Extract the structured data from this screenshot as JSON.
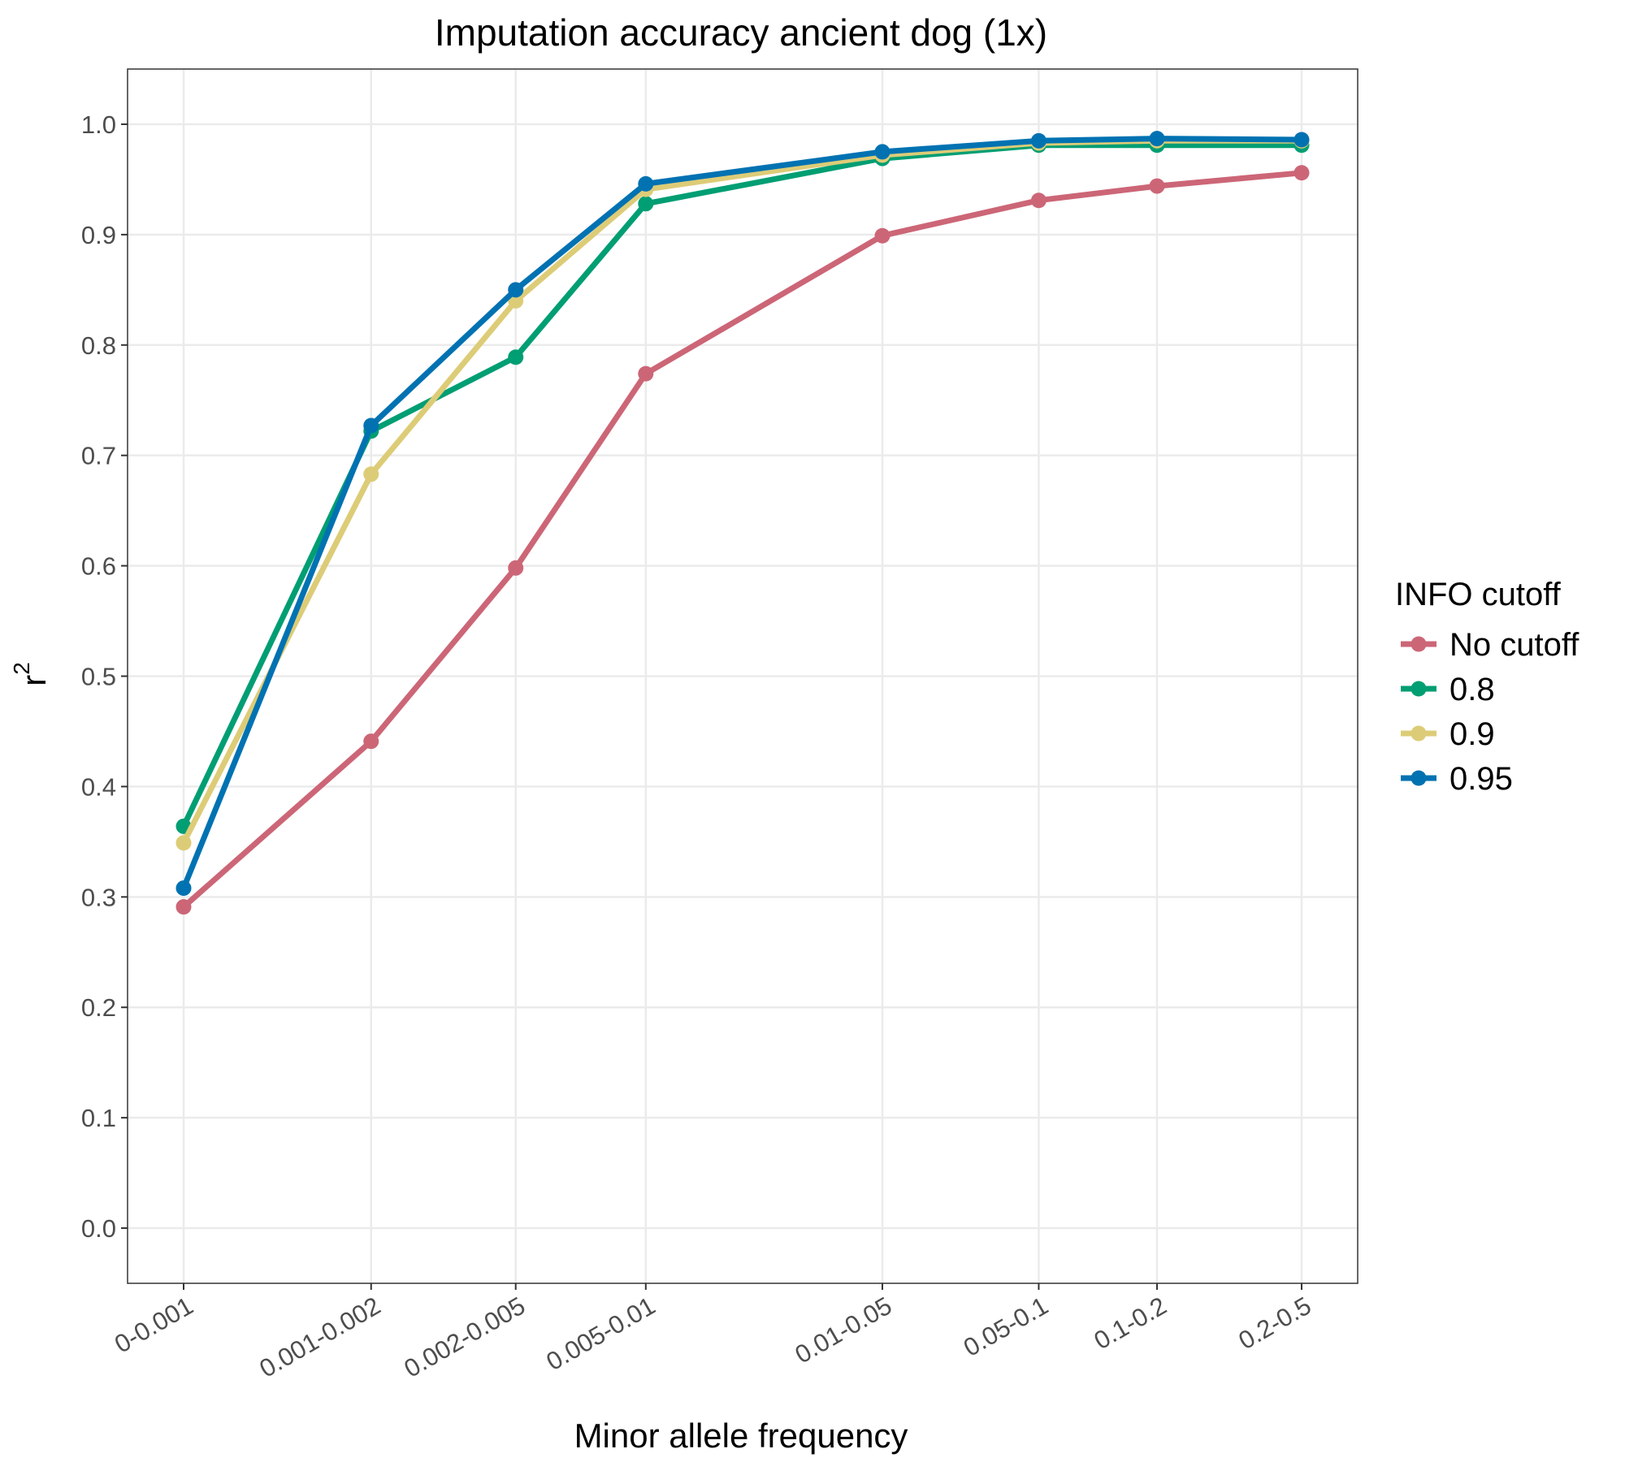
{
  "chart_data": {
    "type": "line",
    "title": "Imputation accuracy ancient dog (1x)",
    "xlabel": "Minor allele frequency",
    "ylabel": "r",
    "ylabel_superscript": "2",
    "categories": [
      "0-0.001",
      "0.001-0.002",
      "0.002-0.005",
      "0.005-0.01",
      "0.01-0.05",
      "0.05-0.1",
      "0.1-0.2",
      "0.2-0.5"
    ],
    "x_positions": [
      0.0005,
      0.0015,
      0.0035,
      0.0075,
      0.03,
      0.075,
      0.15,
      0.35
    ],
    "x_scale": "log",
    "ylim": [
      -0.05,
      1.05
    ],
    "yticks": [
      "0.0",
      "0.1",
      "0.2",
      "0.3",
      "0.4",
      "0.5",
      "0.6",
      "0.7",
      "0.8",
      "0.9",
      "1.0"
    ],
    "grid": true,
    "legend": {
      "title": "INFO cutoff",
      "placement": "right"
    },
    "series": [
      {
        "name": "No cutoff",
        "color": "#CC6677",
        "values": [
          0.291,
          0.441,
          0.598,
          0.774,
          0.899,
          0.931,
          0.944,
          0.956
        ]
      },
      {
        "name": "0.8",
        "color": "#009E73",
        "values": [
          0.364,
          0.722,
          0.789,
          0.928,
          0.969,
          0.981,
          0.981,
          0.981
        ]
      },
      {
        "name": "0.9",
        "color": "#DDCC77",
        "values": [
          0.349,
          0.683,
          0.84,
          0.941,
          0.972,
          0.983,
          0.985,
          0.985
        ]
      },
      {
        "name": "0.95",
        "color": "#0072B2",
        "values": [
          0.308,
          0.727,
          0.85,
          0.946,
          0.975,
          0.985,
          0.987,
          0.986
        ]
      }
    ]
  }
}
